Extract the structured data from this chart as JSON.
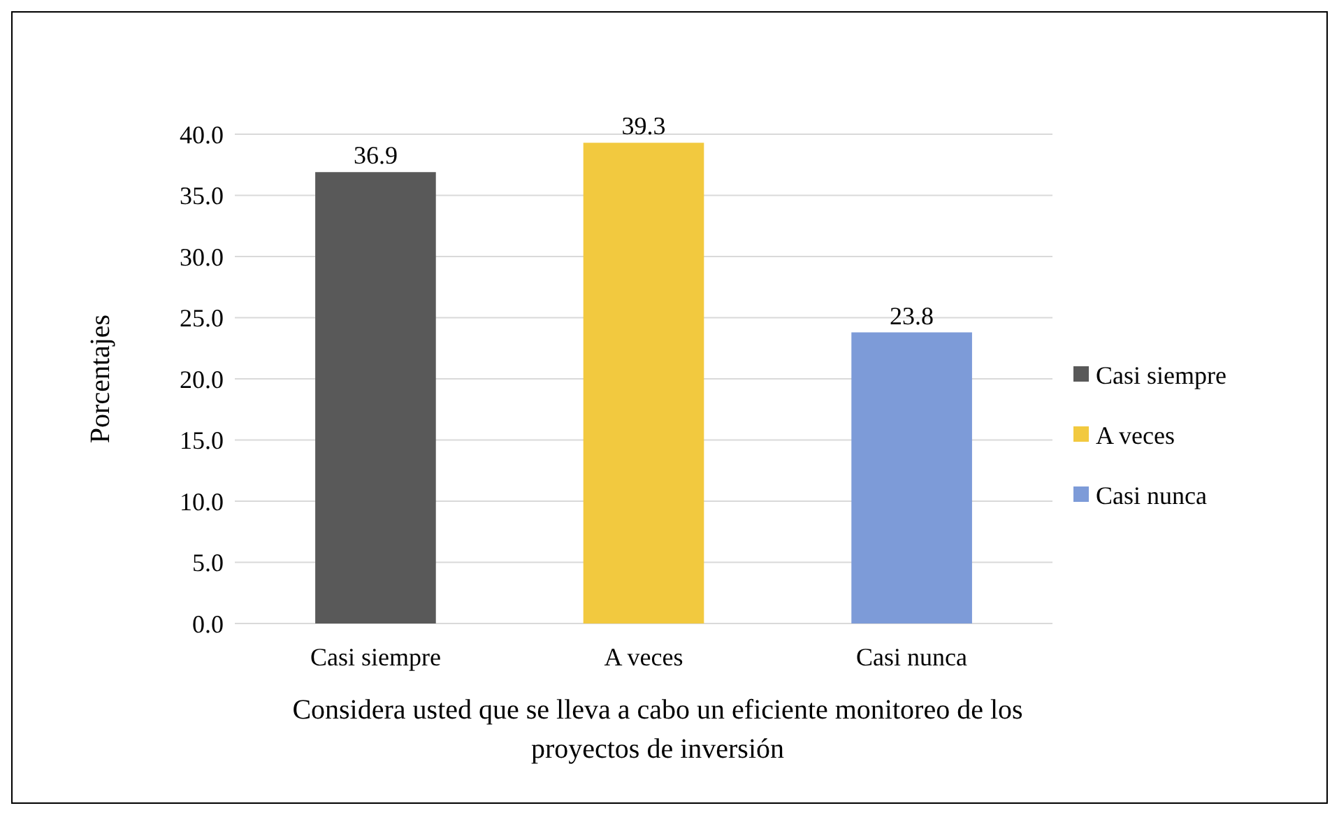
{
  "chart_data": {
    "type": "bar",
    "xlabel": "Considera usted que se lleva a cabo un eficiente monitoreo de los proyectos de inversión",
    "ylabel": "Porcentajes",
    "categories": [
      "Casi siempre",
      "A veces",
      "Casi nunca"
    ],
    "series": [
      {
        "name": "Casi siempre",
        "color": "#595959",
        "values": [
          36.9,
          null,
          null
        ]
      },
      {
        "name": "A veces",
        "color": "#f2c93f",
        "values": [
          null,
          39.3,
          null
        ]
      },
      {
        "name": "Casi nunca",
        "color": "#7d9bd8",
        "values": [
          null,
          null,
          23.8
        ]
      }
    ],
    "ylim": [
      0,
      40
    ],
    "yticks": [
      {
        "value": 0,
        "label": "0.0"
      },
      {
        "value": 5,
        "label": "5.0"
      },
      {
        "value": 10,
        "label": "10.0"
      },
      {
        "value": 15,
        "label": "15.0"
      },
      {
        "value": 20,
        "label": "20.0"
      },
      {
        "value": 25,
        "label": "25.0"
      },
      {
        "value": 30,
        "label": "30.0"
      },
      {
        "value": 35,
        "label": "35.0"
      },
      {
        "value": 40,
        "label": "40.0"
      }
    ],
    "grid": "y",
    "legend": "right",
    "data_labels": true
  }
}
